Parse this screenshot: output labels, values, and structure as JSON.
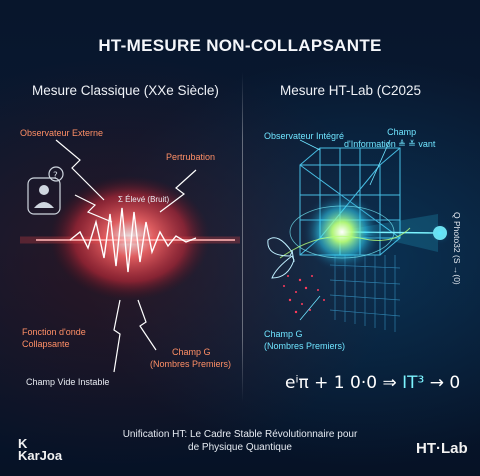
{
  "title": "HT-MESURE NON-COLLAPSANTE",
  "left_panel": {
    "heading": "Mesure Classique (XXe Siècle)",
    "observer_label": "Observateur Externe",
    "perturbation_label": "Pertrubation",
    "noise_label": "Σ Élevé (Bruit)",
    "wave_label_line1": "Fonction d'onde",
    "wave_label_line2": "Collapsante",
    "field_label_line1": "Champ G",
    "field_label_line2": "(Nombres Premiers)",
    "vacuum_label": "Champ Vide Instable",
    "colors": {
      "accent": "#ff8f66",
      "glow": "#ff3b3b"
    }
  },
  "right_panel": {
    "heading": "Mesure HT-Lab (C2025",
    "observer_label": "Observateur Intégré",
    "info_label_line1": "Champ",
    "info_label_line2": "d'Information ≜ ≚ vant",
    "field_label_line1": "Champ G",
    "field_label_line2": "(Nombres Premiers)",
    "side_label": "Q Photo32 (S →(0)",
    "equation_prefix": "eⁱπ + 1 0·0 ⇒ ",
    "equation_highlight": "IT³",
    "equation_suffix": " → 0",
    "colors": {
      "accent": "#6fe4ff",
      "glow": "#2fd8ff",
      "core": "#b8ff7a"
    }
  },
  "footer": {
    "line1": "Unification HT: Le Cadre Stable Révolutionnaire pour",
    "line2": "de Physique Quantique"
  },
  "logos": {
    "left_symbol": "K",
    "left_name": "KarJoa",
    "right_name": "HT·Lab"
  }
}
